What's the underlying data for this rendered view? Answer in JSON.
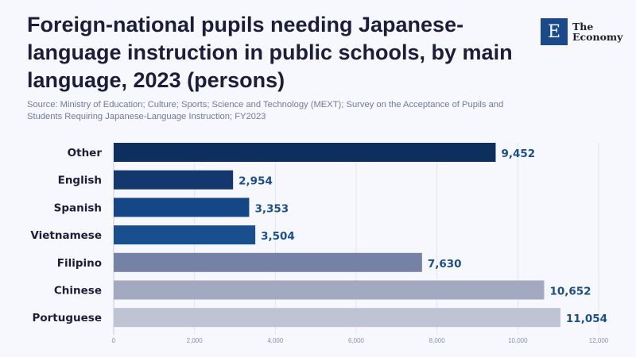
{
  "title": "Foreign-national pupils needing Japanese-language instruction in public schools, by main language, 2023 (persons)",
  "source": "Source: Ministry of Education; Culture; Sports; Science and Technology (MEXT); Survey on the Acceptance of Pupils and Students Requiring Japanese-Language Instruction; FY2023",
  "logo": {
    "mark": "E",
    "line1": "The",
    "line2": "Economy"
  },
  "colors": {
    "label": "#1a4f8c",
    "background": "#f7f8fd"
  },
  "chart_data": {
    "type": "bar",
    "orientation": "horizontal",
    "categories": [
      "Other",
      "English",
      "Spanish",
      "Vietnamese",
      "Filipino",
      "Chinese",
      "Portuguese"
    ],
    "values": [
      9452,
      2954,
      3353,
      3504,
      7630,
      10652,
      11054
    ],
    "value_labels": [
      "9,452",
      "2,954",
      "3,353",
      "3,504",
      "7,630",
      "10,652",
      "11,054"
    ],
    "bar_colors": [
      "#0d2f5e",
      "#12386e",
      "#154685",
      "#1a4f8f",
      "#7582a6",
      "#a2a9c0",
      "#bec4d4"
    ],
    "xlim": [
      0,
      12000
    ],
    "xticks": [
      0,
      2000,
      4000,
      6000,
      8000,
      10000,
      12000
    ],
    "xtick_labels": [
      "0",
      "2,000",
      "4,000",
      "6,000",
      "8,000",
      "10,000",
      "12,000"
    ],
    "grid": true,
    "xlabel": "",
    "ylabel": ""
  }
}
